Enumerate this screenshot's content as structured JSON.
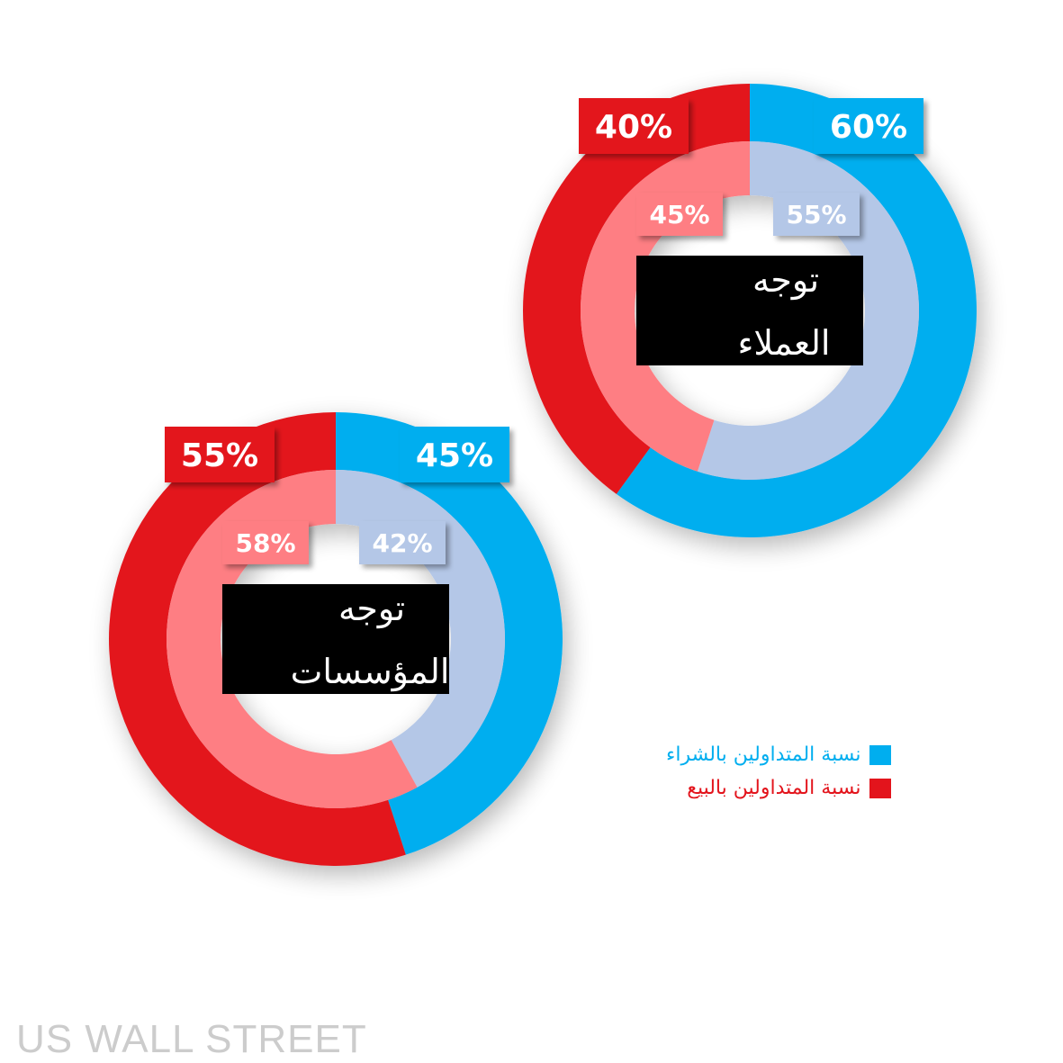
{
  "colors": {
    "buy_outer": "#00aeef",
    "buy_inner": "#b4c7e7",
    "sell_outer": "#e3141c",
    "sell_inner": "#fe7e83",
    "center_bg": "#000000",
    "center_text": "#ffffff",
    "tag_text": "#ffffff",
    "watermark": "#cccccc"
  },
  "legend": [
    {
      "label": "نسبة المتداولين بالشراء",
      "color": "#00aeef"
    },
    {
      "label": "نسبة المتداولين بالبيع",
      "color": "#e3141c"
    }
  ],
  "watermark": "US WALL STREET",
  "chart_data": [
    {
      "type": "pie",
      "title_lines": [
        "توجه",
        "العملاء"
      ],
      "outer": [
        {
          "name": "نسبة المتداولين بالشراء",
          "value": 60,
          "label": "60%"
        },
        {
          "name": "نسبة المتداولين بالبيع",
          "value": 40,
          "label": "40%"
        }
      ],
      "inner": [
        {
          "name": "نسبة المتداولين بالشراء",
          "value": 55,
          "label": "55%"
        },
        {
          "name": "نسبة المتداولين بالبيع",
          "value": 45,
          "label": "45%"
        }
      ]
    },
    {
      "type": "pie",
      "title_lines": [
        "توجه",
        "المؤسسات"
      ],
      "outer": [
        {
          "name": "نسبة المتداولين بالشراء",
          "value": 45,
          "label": "45%"
        },
        {
          "name": "نسبة المتداولين بالبيع",
          "value": 55,
          "label": "55%"
        }
      ],
      "inner": [
        {
          "name": "نسبة المتداولين بالشراء",
          "value": 42,
          "label": "42%"
        },
        {
          "name": "نسبة المتداولين بالبيع",
          "value": 58,
          "label": "58%"
        }
      ]
    }
  ]
}
